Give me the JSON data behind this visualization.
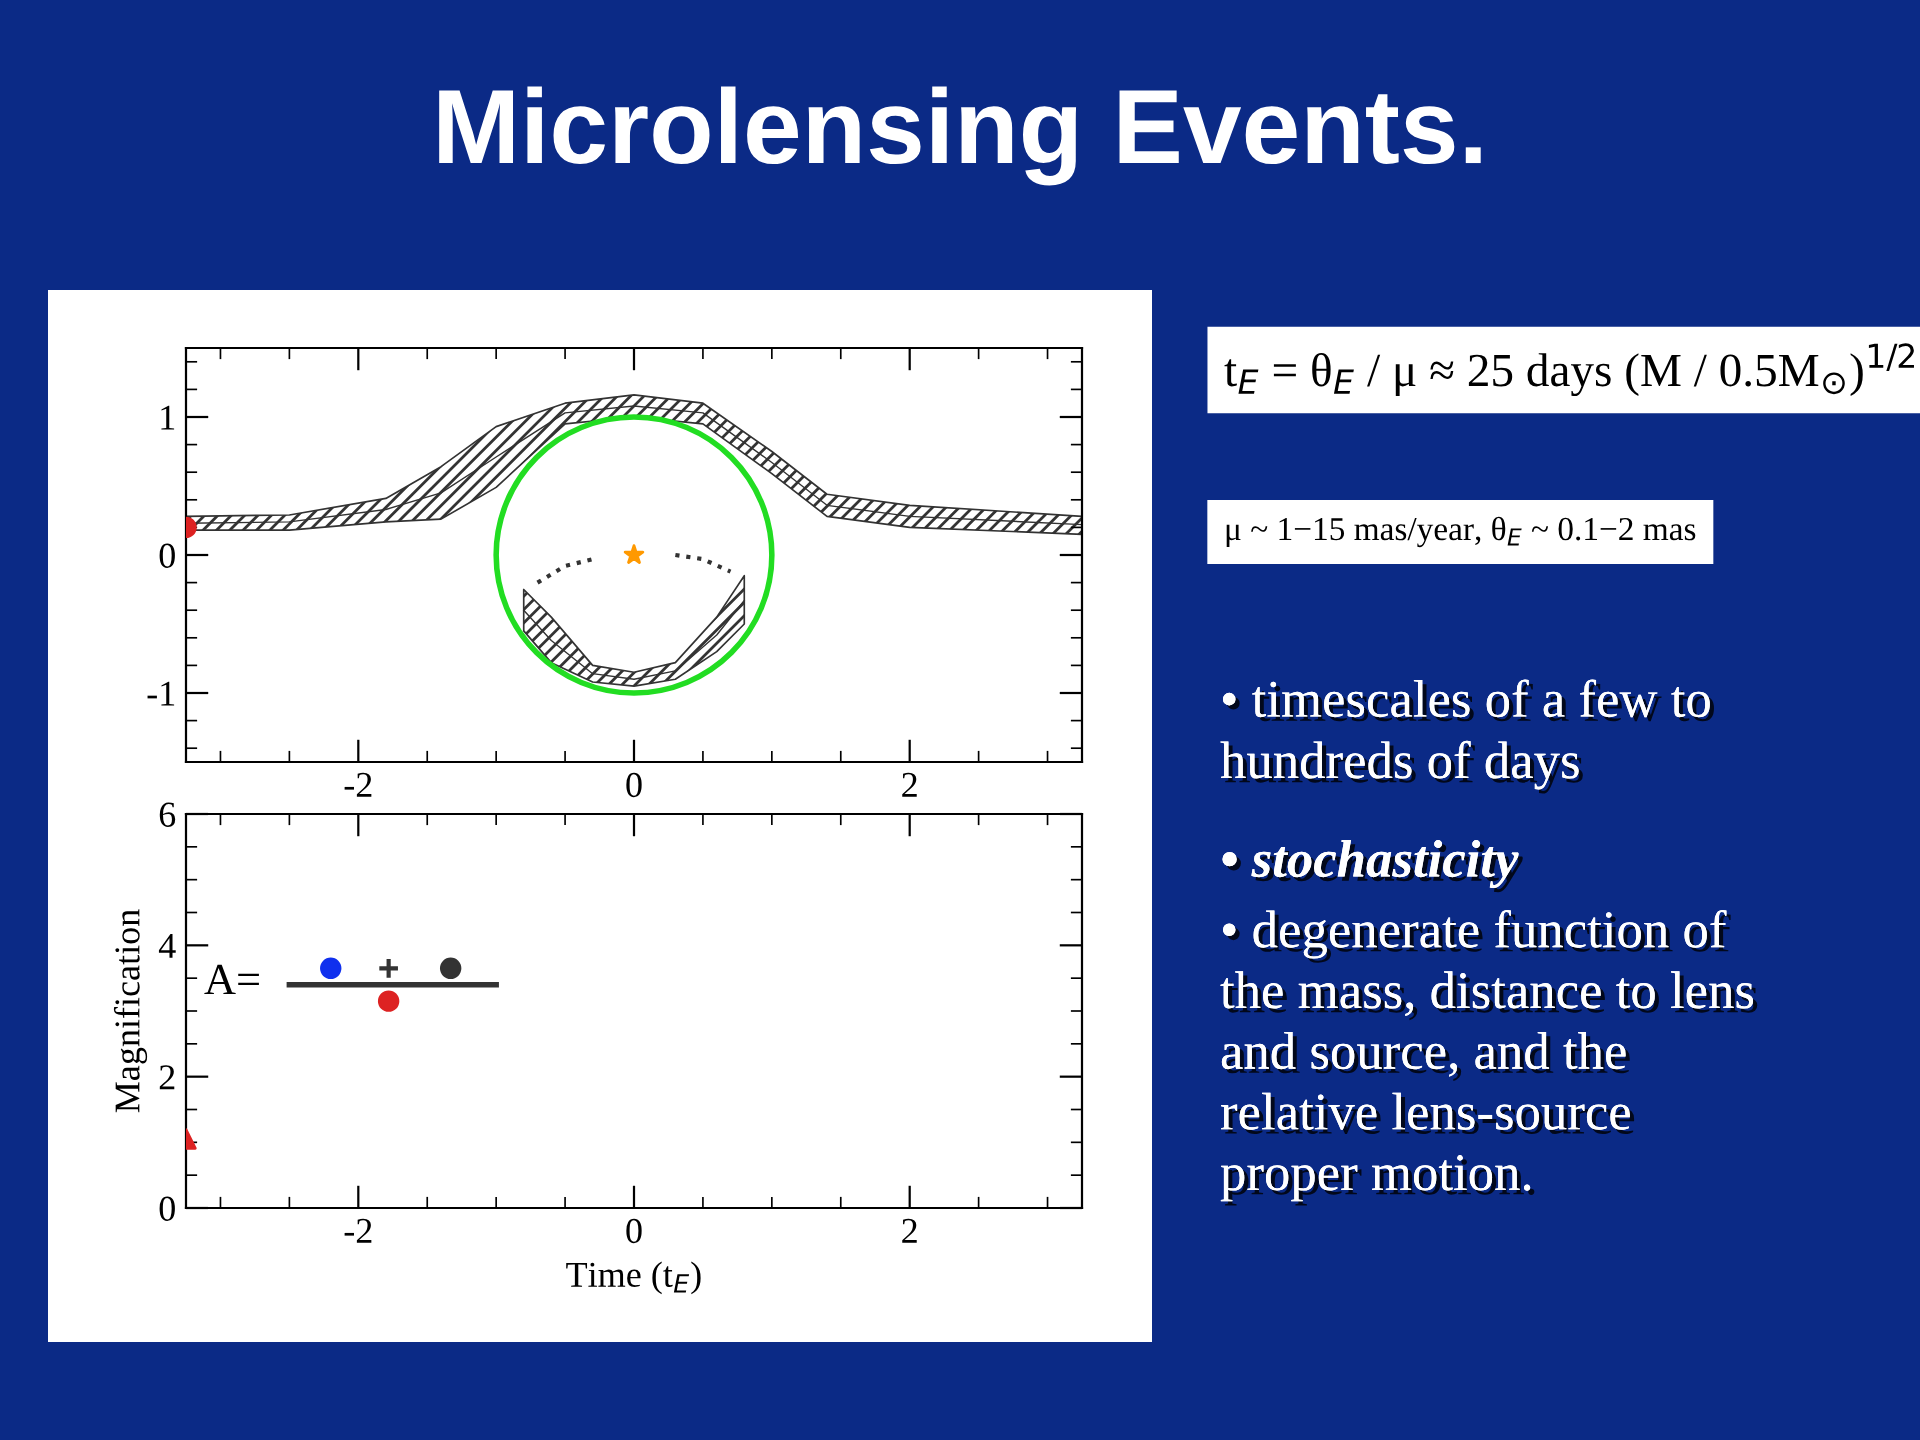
{
  "chart_data": [
    {
      "type": "area",
      "xlim": [
        -3.25,
        3.25
      ],
      "ylim": [
        -1.5,
        1.5
      ],
      "xticks": [
        -2,
        0,
        2
      ],
      "yticks": [
        -1,
        0,
        1
      ],
      "grid": false,
      "series": [
        {
          "type": "line",
          "color": "#333333",
          "line_style": "solid",
          "marker": "none",
          "x": [
            -3.25,
            -2.5,
            -1.8,
            -1.4,
            -1.0,
            -0.5,
            0,
            0.5,
            1.0,
            1.4,
            2.0,
            3.25
          ],
          "values": [
            0.23,
            0.24,
            0.33,
            0.45,
            0.71,
            1.03,
            1.08,
            1.03,
            0.67,
            0.36,
            0.28,
            0.22
          ],
          "upper": [
            0.28,
            0.29,
            0.41,
            0.64,
            0.93,
            1.1,
            1.16,
            1.1,
            0.75,
            0.44,
            0.36,
            0.28
          ],
          "lower": [
            0.18,
            0.18,
            0.24,
            0.26,
            0.49,
            0.95,
            1.0,
            0.95,
            0.59,
            0.28,
            0.2,
            0.15
          ]
        },
        {
          "type": "line",
          "color": "#333333",
          "line_style": "solid",
          "marker": "none",
          "x": [
            -0.8,
            -0.6,
            -0.3,
            0,
            0.3,
            0.6,
            0.8
          ],
          "values": [
            -0.4,
            -0.62,
            -0.86,
            -0.9,
            -0.84,
            -0.58,
            -0.33
          ],
          "upper": [
            -0.25,
            -0.45,
            -0.8,
            -0.85,
            -0.78,
            -0.45,
            -0.15
          ],
          "lower": [
            -0.55,
            -0.78,
            -0.92,
            -0.95,
            -0.9,
            -0.7,
            -0.5
          ]
        },
        {
          "type": "line",
          "color": "#333333",
          "line_style": "dotted",
          "marker": "none",
          "x": [
            -0.7,
            -0.5,
            -0.3,
            0,
            0.3,
            0.5,
            0.7
          ],
          "values": [
            -0.2,
            -0.08,
            -0.03,
            null,
            0.0,
            -0.03,
            -0.12
          ]
        },
        {
          "type": "scatter",
          "color": "#ff9900",
          "marker": "star",
          "x": [
            0
          ],
          "values": [
            0
          ]
        },
        {
          "type": "scatter",
          "color": "#dd2222",
          "marker": "circle",
          "x": [
            -3.25
          ],
          "values": [
            0.2
          ]
        }
      ]
    },
    {
      "type": "scatter",
      "xlim": [
        -3.25,
        3.25
      ],
      "ylim": [
        0,
        6
      ],
      "xticks": [
        -2,
        0,
        2
      ],
      "yticks": [
        0,
        2,
        4,
        6
      ],
      "grid": false,
      "xlabel": "Time (t$_{E}$)",
      "ylabel": "Magnification",
      "annotations": [
        "A="
      ],
      "series": [
        {
          "type": "scatter",
          "color": "#1030ee",
          "marker": "circle",
          "x": [
            -2.2
          ],
          "values": [
            3.65
          ]
        },
        {
          "type": "scatter",
          "color": "#333333",
          "marker": "cross",
          "x": [
            -1.78
          ],
          "values": [
            3.65
          ]
        },
        {
          "type": "scatter",
          "color": "#333333",
          "marker": "circle",
          "x": [
            -1.33
          ],
          "values": [
            3.65
          ]
        },
        {
          "type": "scatter",
          "color": "#dd2222",
          "marker": "circle",
          "x": [
            -1.78
          ],
          "values": [
            3.15
          ]
        },
        {
          "type": "scatter",
          "color": "#dd2222",
          "marker": "triangle",
          "x": [
            -3.25
          ],
          "values": [
            1.05
          ]
        },
        {
          "type": "line",
          "color": "#333333",
          "line_style": "solid",
          "marker": "none",
          "x": [
            -2.5,
            -1.0
          ],
          "values": [
            3.4,
            3.4
          ]
        }
      ]
    },
    {
      "type": "other",
      "title": "Microlensing Events.",
      "annotations": [
        "t$_{E}$ = θ$_{E}$ / μ ≈ 25 days (M / 0.5M$_{⊙}$)$^{1/2}$",
        "μ ~ 1−15 mas/year, θ$_{E}$ ~ 0.1−2 mas",
        "• timescales of a few to\nhundreds of days",
        "• stochasticity",
        "• degenerate function of\nthe mass, distance to lens\nand source, and the\nrelative lens-source\nproper motion."
      ]
    }
  ]
}
